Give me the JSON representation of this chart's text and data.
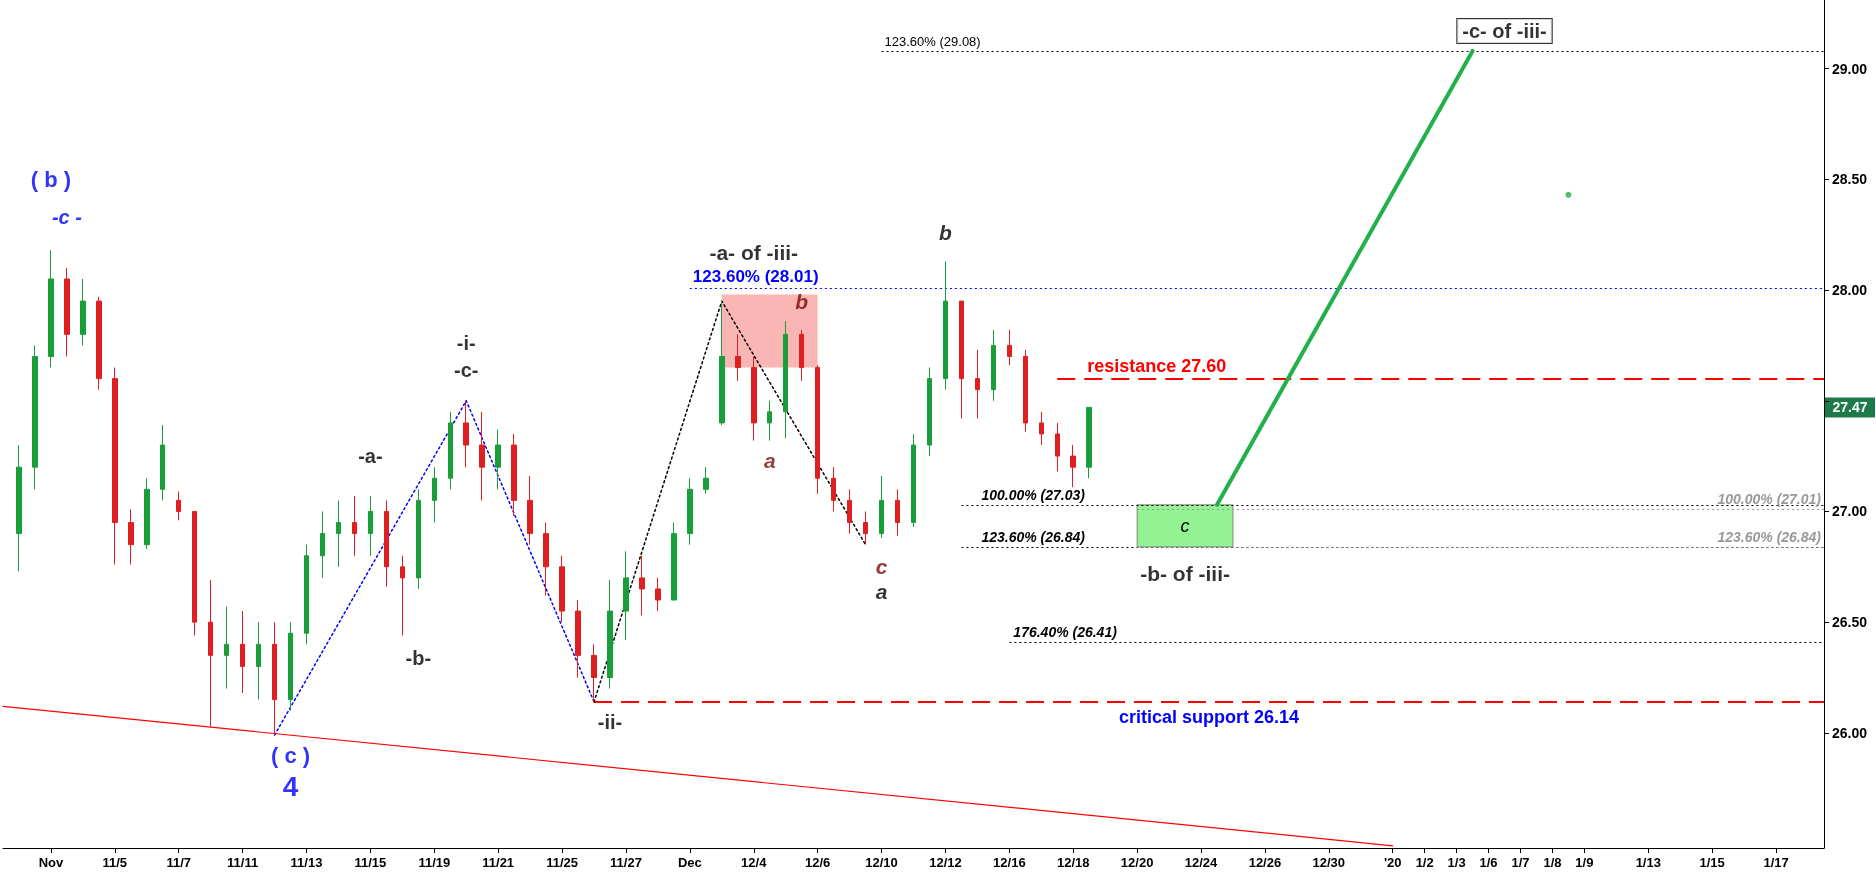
{
  "chart_data": {
    "type": "candlestick",
    "marker": "none",
    "grid": false,
    "ylim": [
      25.48,
      29.31
    ],
    "categories": [
      null,
      null,
      null,
      "Nov",
      null,
      null,
      null,
      "11/5",
      null,
      null,
      null,
      "11/7",
      null,
      null,
      null,
      "11/11",
      null,
      null,
      null,
      "11/13",
      null,
      null,
      null,
      "11/15",
      null,
      null,
      null,
      "11/19",
      null,
      null,
      null,
      "11/21",
      null,
      null,
      null,
      "11/25",
      null,
      null,
      null,
      "11/27",
      null,
      null,
      null,
      "Dec",
      null,
      null,
      null,
      "12/4",
      null,
      null,
      null,
      "12/6",
      null,
      null,
      null,
      "12/10",
      null,
      null,
      null,
      "12/12",
      null,
      null,
      null,
      "12/16",
      null,
      null,
      null,
      "12/18",
      null,
      null,
      null,
      "12/20",
      null,
      null,
      null,
      "12/24",
      null,
      null,
      null,
      "12/26",
      null,
      null,
      null,
      "12/30",
      null,
      null,
      null,
      "'20",
      null,
      "1/2",
      null,
      "1/3",
      null,
      "1/6",
      null,
      "1/7",
      null,
      "1/8",
      null,
      "1/9",
      null,
      null,
      null,
      "1/13",
      null,
      null,
      null,
      "1/15",
      null,
      null,
      null,
      "1/17",
      null,
      null,
      null
    ],
    "yticks": [
      {
        "value": 26,
        "label": "26.00"
      },
      {
        "value": 26.5,
        "label": "26.50"
      },
      {
        "value": 27,
        "label": "27.00"
      },
      {
        "value": 27.5,
        "label": null
      },
      {
        "value": 28,
        "label": "28.00"
      },
      {
        "value": 28.5,
        "label": "28.50"
      },
      {
        "value": 29,
        "label": "29.00"
      }
    ],
    "series": [
      {
        "type": "line",
        "color": "#ff0000",
        "line_style": "solid",
        "values": [
          26.12,
          null,
          null,
          null,
          null,
          null,
          null,
          null,
          null,
          null,
          null,
          null,
          null,
          null,
          null,
          null,
          null,
          null,
          null,
          null,
          null,
          null,
          null,
          null,
          null,
          null,
          null,
          null,
          null,
          null,
          null,
          null,
          null,
          null,
          null,
          null,
          null,
          null,
          null,
          null,
          null,
          null,
          null,
          null,
          null,
          null,
          null,
          null,
          null,
          null,
          null,
          null,
          null,
          null,
          null,
          null,
          null,
          null,
          null,
          null,
          null,
          null,
          null,
          null,
          null,
          null,
          null,
          null,
          null,
          null,
          null,
          null,
          null,
          null,
          null,
          null,
          null,
          null,
          null,
          null,
          null,
          null,
          null,
          null,
          null,
          null,
          null,
          25.49,
          null,
          null,
          null,
          null,
          null,
          null,
          null,
          null,
          null,
          null,
          null,
          null,
          null,
          null,
          null,
          null,
          null,
          null,
          null,
          null,
          null,
          null,
          null,
          null,
          null,
          null,
          null
        ]
      },
      {
        "type": "line",
        "color": "#0000ff",
        "line_style": "dotted",
        "values": [
          null,
          null,
          null,
          null,
          null,
          null,
          null,
          null,
          null,
          null,
          null,
          null,
          null,
          null,
          null,
          null,
          null,
          25.99,
          null,
          null,
          null,
          null,
          null,
          null,
          null,
          null,
          null,
          null,
          null,
          27.5,
          null,
          null,
          null,
          null,
          null,
          null,
          null,
          26.14,
          null,
          null,
          null,
          null,
          null,
          null,
          null,
          null,
          null,
          null,
          null,
          null,
          null,
          null,
          null,
          null,
          null,
          null,
          null,
          null,
          null,
          null,
          null,
          null,
          null,
          null,
          null,
          null,
          null,
          null,
          null,
          null,
          null,
          null,
          null,
          null,
          null,
          null,
          null,
          null,
          null,
          null,
          null,
          null,
          null,
          null,
          null,
          null,
          null,
          null,
          null,
          null,
          null,
          null,
          null,
          null,
          null,
          null,
          null,
          null,
          null,
          null,
          null,
          null,
          null,
          null,
          null,
          null,
          null,
          null,
          null,
          null,
          null,
          null,
          null,
          null,
          null
        ]
      },
      {
        "type": "line",
        "color": "#000000",
        "line_style": "dotted",
        "values": [
          null,
          null,
          null,
          null,
          null,
          null,
          null,
          null,
          null,
          null,
          null,
          null,
          null,
          null,
          null,
          null,
          null,
          null,
          null,
          null,
          null,
          null,
          null,
          null,
          null,
          null,
          null,
          null,
          null,
          null,
          null,
          null,
          null,
          null,
          null,
          null,
          null,
          26.14,
          null,
          null,
          null,
          null,
          null,
          null,
          null,
          27.95,
          null,
          null,
          null,
          null,
          null,
          null,
          null,
          null,
          26.85,
          null,
          null,
          null,
          null,
          null,
          null,
          null,
          null,
          null,
          null,
          null,
          null,
          null,
          null,
          null,
          null,
          null,
          null,
          null,
          null,
          null,
          null,
          null,
          null,
          null,
          null,
          null,
          null,
          null,
          null,
          null,
          null,
          null,
          null,
          null,
          null,
          null,
          null,
          null,
          null,
          null,
          null,
          null,
          null,
          null,
          null,
          null,
          null,
          null,
          null,
          null,
          null,
          null,
          null,
          null,
          null,
          null,
          null,
          null,
          null
        ]
      },
      {
        "type": "line",
        "color": "#22b04b",
        "line_style": "solid",
        "values": [
          null,
          null,
          null,
          null,
          null,
          null,
          null,
          null,
          null,
          null,
          null,
          null,
          null,
          null,
          null,
          null,
          null,
          null,
          null,
          null,
          null,
          null,
          null,
          null,
          null,
          null,
          null,
          null,
          null,
          null,
          null,
          null,
          null,
          null,
          null,
          null,
          null,
          null,
          null,
          null,
          null,
          null,
          null,
          null,
          null,
          null,
          null,
          null,
          null,
          null,
          null,
          null,
          null,
          null,
          null,
          null,
          null,
          null,
          null,
          null,
          null,
          null,
          null,
          null,
          null,
          null,
          null,
          null,
          null,
          null,
          null,
          null,
          null,
          null,
          null,
          null,
          27.03,
          null,
          null,
          null,
          null,
          null,
          null,
          null,
          null,
          null,
          null,
          null,
          null,
          null,
          null,
          null,
          29.08,
          null,
          null,
          null,
          null,
          null,
          null,
          null,
          null,
          null,
          null,
          null,
          null,
          null,
          null,
          null,
          null,
          null,
          null,
          null,
          null,
          null,
          null
        ]
      },
      {
        "type": "scatter",
        "color": "#22b04b",
        "marker": "circle",
        "values": [
          null,
          null,
          null,
          null,
          null,
          null,
          null,
          null,
          null,
          null,
          null,
          null,
          null,
          null,
          null,
          null,
          null,
          null,
          null,
          null,
          null,
          null,
          null,
          null,
          null,
          null,
          null,
          null,
          null,
          null,
          null,
          null,
          null,
          null,
          null,
          null,
          null,
          null,
          null,
          null,
          null,
          null,
          null,
          null,
          null,
          null,
          null,
          null,
          null,
          null,
          null,
          null,
          null,
          null,
          null,
          null,
          null,
          null,
          null,
          null,
          null,
          null,
          null,
          null,
          null,
          null,
          null,
          null,
          null,
          null,
          null,
          null,
          null,
          null,
          null,
          null,
          null,
          null,
          null,
          null,
          null,
          null,
          null,
          null,
          null,
          null,
          null,
          null,
          null,
          null,
          null,
          null,
          null,
          null,
          null,
          null,
          null,
          null,
          28.43,
          null,
          null,
          null,
          null,
          null,
          null,
          null,
          null,
          null,
          null,
          null,
          null,
          null,
          null,
          null,
          null
        ]
      },
      {
        "ohlc": [
          null,
          [
            26.9,
            27.3,
            26.73,
            27.2
          ],
          [
            27.2,
            27.75,
            27.1,
            27.7
          ],
          [
            27.7,
            28.18,
            27.65,
            28.05
          ],
          [
            28.05,
            28.1,
            27.7,
            27.8
          ],
          [
            27.8,
            28.05,
            27.75,
            27.95
          ],
          [
            27.95,
            27.97,
            27.55,
            27.6
          ],
          [
            27.6,
            27.65,
            26.76,
            26.95
          ],
          [
            26.95,
            27.01,
            26.76,
            26.85
          ],
          [
            26.85,
            27.15,
            26.83,
            27.1
          ],
          [
            27.1,
            27.39,
            27.05,
            27.3
          ],
          [
            27.05,
            27.09,
            26.96,
            27.0
          ],
          [
            27.0,
            27.0,
            26.44,
            26.5
          ],
          [
            26.5,
            26.69,
            26.03,
            26.35
          ],
          [
            26.35,
            26.57,
            26.2,
            26.4
          ],
          [
            26.4,
            26.55,
            26.18,
            26.3
          ],
          [
            26.3,
            26.5,
            26.15,
            26.4
          ],
          [
            26.4,
            26.5,
            25.99,
            26.15
          ],
          [
            26.15,
            26.5,
            26.1,
            26.45
          ],
          [
            26.45,
            26.85,
            26.4,
            26.8
          ],
          [
            26.8,
            27.0,
            26.7,
            26.9
          ],
          [
            26.9,
            27.05,
            26.75,
            26.95
          ],
          [
            26.95,
            27.07,
            26.8,
            26.9
          ],
          [
            26.9,
            27.07,
            26.8,
            27.0
          ],
          [
            27.0,
            27.05,
            26.66,
            26.75
          ],
          [
            26.75,
            26.8,
            26.44,
            26.7
          ],
          [
            26.7,
            27.1,
            26.65,
            27.05
          ],
          [
            27.05,
            27.2,
            26.95,
            27.15
          ],
          [
            27.15,
            27.45,
            27.1,
            27.4
          ],
          [
            27.4,
            27.5,
            27.2,
            27.3
          ],
          [
            27.3,
            27.45,
            27.05,
            27.2
          ],
          [
            27.2,
            27.37,
            27.1,
            27.3
          ],
          [
            27.3,
            27.35,
            26.98,
            27.05
          ],
          [
            27.05,
            27.16,
            26.85,
            26.9
          ],
          [
            26.9,
            26.95,
            26.62,
            26.75
          ],
          [
            26.75,
            26.8,
            26.5,
            26.55
          ],
          [
            26.55,
            26.6,
            26.25,
            26.35
          ],
          [
            26.35,
            26.4,
            26.14,
            26.25
          ],
          [
            26.25,
            26.69,
            26.2,
            26.55
          ],
          [
            26.55,
            26.82,
            26.42,
            26.7
          ],
          [
            26.7,
            26.8,
            26.53,
            26.65
          ],
          [
            26.65,
            26.7,
            26.55,
            26.6
          ],
          [
            26.6,
            26.95,
            26.6,
            26.9
          ],
          [
            26.9,
            27.15,
            26.85,
            27.1
          ],
          [
            27.1,
            27.2,
            27.08,
            27.15
          ],
          [
            27.4,
            27.95,
            27.39,
            27.7
          ],
          [
            27.7,
            27.8,
            27.59,
            27.65
          ],
          [
            27.65,
            27.7,
            27.32,
            27.4
          ],
          [
            27.4,
            27.5,
            27.32,
            27.45
          ],
          [
            27.45,
            27.86,
            27.33,
            27.8
          ],
          [
            27.8,
            27.82,
            27.59,
            27.65
          ],
          [
            27.65,
            27.66,
            27.08,
            27.15
          ],
          [
            27.15,
            27.2,
            27.0,
            27.05
          ],
          [
            27.05,
            27.1,
            26.9,
            26.95
          ],
          [
            26.95,
            27.0,
            26.85,
            26.9
          ],
          [
            26.9,
            27.16,
            26.88,
            27.05
          ],
          [
            27.05,
            27.1,
            26.89,
            26.95
          ],
          [
            26.95,
            27.35,
            26.93,
            27.3
          ],
          [
            27.3,
            27.65,
            27.25,
            27.6
          ],
          [
            27.6,
            28.13,
            27.55,
            27.95
          ],
          [
            27.95,
            27.95,
            27.42,
            27.6
          ],
          [
            27.6,
            27.73,
            27.42,
            27.55
          ],
          [
            27.55,
            27.82,
            27.5,
            27.75
          ],
          [
            27.75,
            27.82,
            27.66,
            27.7
          ],
          [
            27.7,
            27.73,
            27.36,
            27.4
          ],
          [
            27.4,
            27.45,
            27.3,
            27.35
          ],
          [
            27.35,
            27.4,
            27.18,
            27.25
          ],
          [
            27.25,
            27.3,
            27.11,
            27.2
          ],
          [
            27.2,
            27.47,
            27.15,
            27.47
          ],
          null,
          null,
          null,
          null,
          null,
          null,
          null,
          null,
          null,
          null,
          null,
          null,
          null,
          null,
          null,
          null,
          null,
          null,
          null,
          null,
          null,
          null,
          null,
          null,
          null,
          null,
          null,
          null,
          null,
          null,
          null,
          null,
          null,
          null,
          null,
          null,
          null,
          null,
          null,
          null,
          null,
          null,
          null,
          null,
          null,
          null
        ],
        "colors": [
          null,
          "#1a9e3a",
          "#1a9e3a",
          "#1a9e3a",
          "#e02020",
          "#1a9e3a",
          "#e02020",
          "#e02020",
          "#e02020",
          "#1a9e3a",
          "#1a9e3a",
          "#e02020",
          "#e02020",
          "#e02020",
          "#1a9e3a",
          "#e02020",
          "#1a9e3a",
          "#e02020",
          "#1a9e3a",
          "#1a9e3a",
          "#1a9e3a",
          "#1a9e3a",
          "#e02020",
          "#1a9e3a",
          "#e02020",
          "#e02020",
          "#1a9e3a",
          "#1a9e3a",
          "#1a9e3a",
          "#e02020",
          "#e02020",
          "#1a9e3a",
          "#e02020",
          "#e02020",
          "#e02020",
          "#e02020",
          "#e02020",
          "#e02020",
          "#1a9e3a",
          "#1a9e3a",
          "#e02020",
          "#e02020",
          "#1a9e3a",
          "#1a9e3a",
          "#1a9e3a",
          "#1a9e3a",
          "#e02020",
          "#e02020",
          "#1a9e3a",
          "#1a9e3a",
          "#e02020",
          "#e02020",
          "#e02020",
          "#e02020",
          "#e02020",
          "#1a9e3a",
          "#e02020",
          "#1a9e3a",
          "#1a9e3a",
          "#1a9e3a",
          "#e02020",
          "#e02020",
          "#1a9e3a",
          "#e02020",
          "#e02020",
          "#e02020",
          "#e02020",
          "#e02020",
          "#1a9e3a",
          null,
          null,
          null,
          null,
          null,
          null,
          null,
          null,
          null,
          null,
          null,
          null,
          null,
          null,
          null,
          null,
          null,
          null,
          null,
          null,
          null,
          null,
          null,
          null,
          null,
          null,
          null,
          null,
          null,
          null,
          null,
          null,
          null,
          null,
          null,
          null,
          null,
          null,
          null,
          null,
          null,
          null,
          null,
          null,
          null,
          null
        ]
      }
    ],
    "ref_lines": [
      {
        "axis": "y",
        "value": 29.08,
        "label": "123.60% (29.08)",
        "color": "#000000",
        "line_style": "dotted"
      },
      {
        "axis": "y",
        "value": 28.01,
        "label": "123.60% (28.01)",
        "color": "#0000ff",
        "line_style": "dotted"
      },
      {
        "axis": "y",
        "value": 27.6,
        "label": "resistance 27.60",
        "color": "#ff0000",
        "line_style": "dashed"
      },
      {
        "axis": "y",
        "value": 27.03,
        "label": "100.00% (27.03)",
        "color": "#000000",
        "line_style": "dotted"
      },
      {
        "axis": "y",
        "value": 27.01,
        "label": "100.00% (27.01)",
        "color": "#999999",
        "line_style": "dotted"
      },
      {
        "axis": "y",
        "value": 26.84,
        "label": "123.60% (26.84)",
        "color": "#000000",
        "line_style": "dotted"
      },
      {
        "axis": "y",
        "value": 26.84,
        "label": "123.60% (26.84)",
        "color": "#999999",
        "line_style": "dotted"
      },
      {
        "axis": "y",
        "value": 26.41,
        "label": "176.40% (26.41)",
        "color": "#000000",
        "line_style": "dotted"
      },
      {
        "axis": "y",
        "value": 26.14,
        "label": "critical support 26.14",
        "color": "#ff0000",
        "line_style": "dashed"
      }
    ],
    "bands": [
      {
        "axis": "y",
        "from": 27.65,
        "to": 27.98,
        "label": null,
        "color": "#f9a8a8"
      },
      {
        "axis": "y",
        "from": 26.84,
        "to": 27.03,
        "label": "c",
        "color": "#80f080"
      }
    ],
    "annotations": [
      "( b )",
      "-c -",
      "( c )",
      "4",
      "-a-",
      "-b-",
      "-i-",
      "-c-",
      "-ii-",
      "-a- of -iii-",
      "a",
      "b",
      "c",
      "a",
      "b",
      "-b- of -iii-",
      "-c- of -iii-",
      "27.47"
    ]
  }
}
